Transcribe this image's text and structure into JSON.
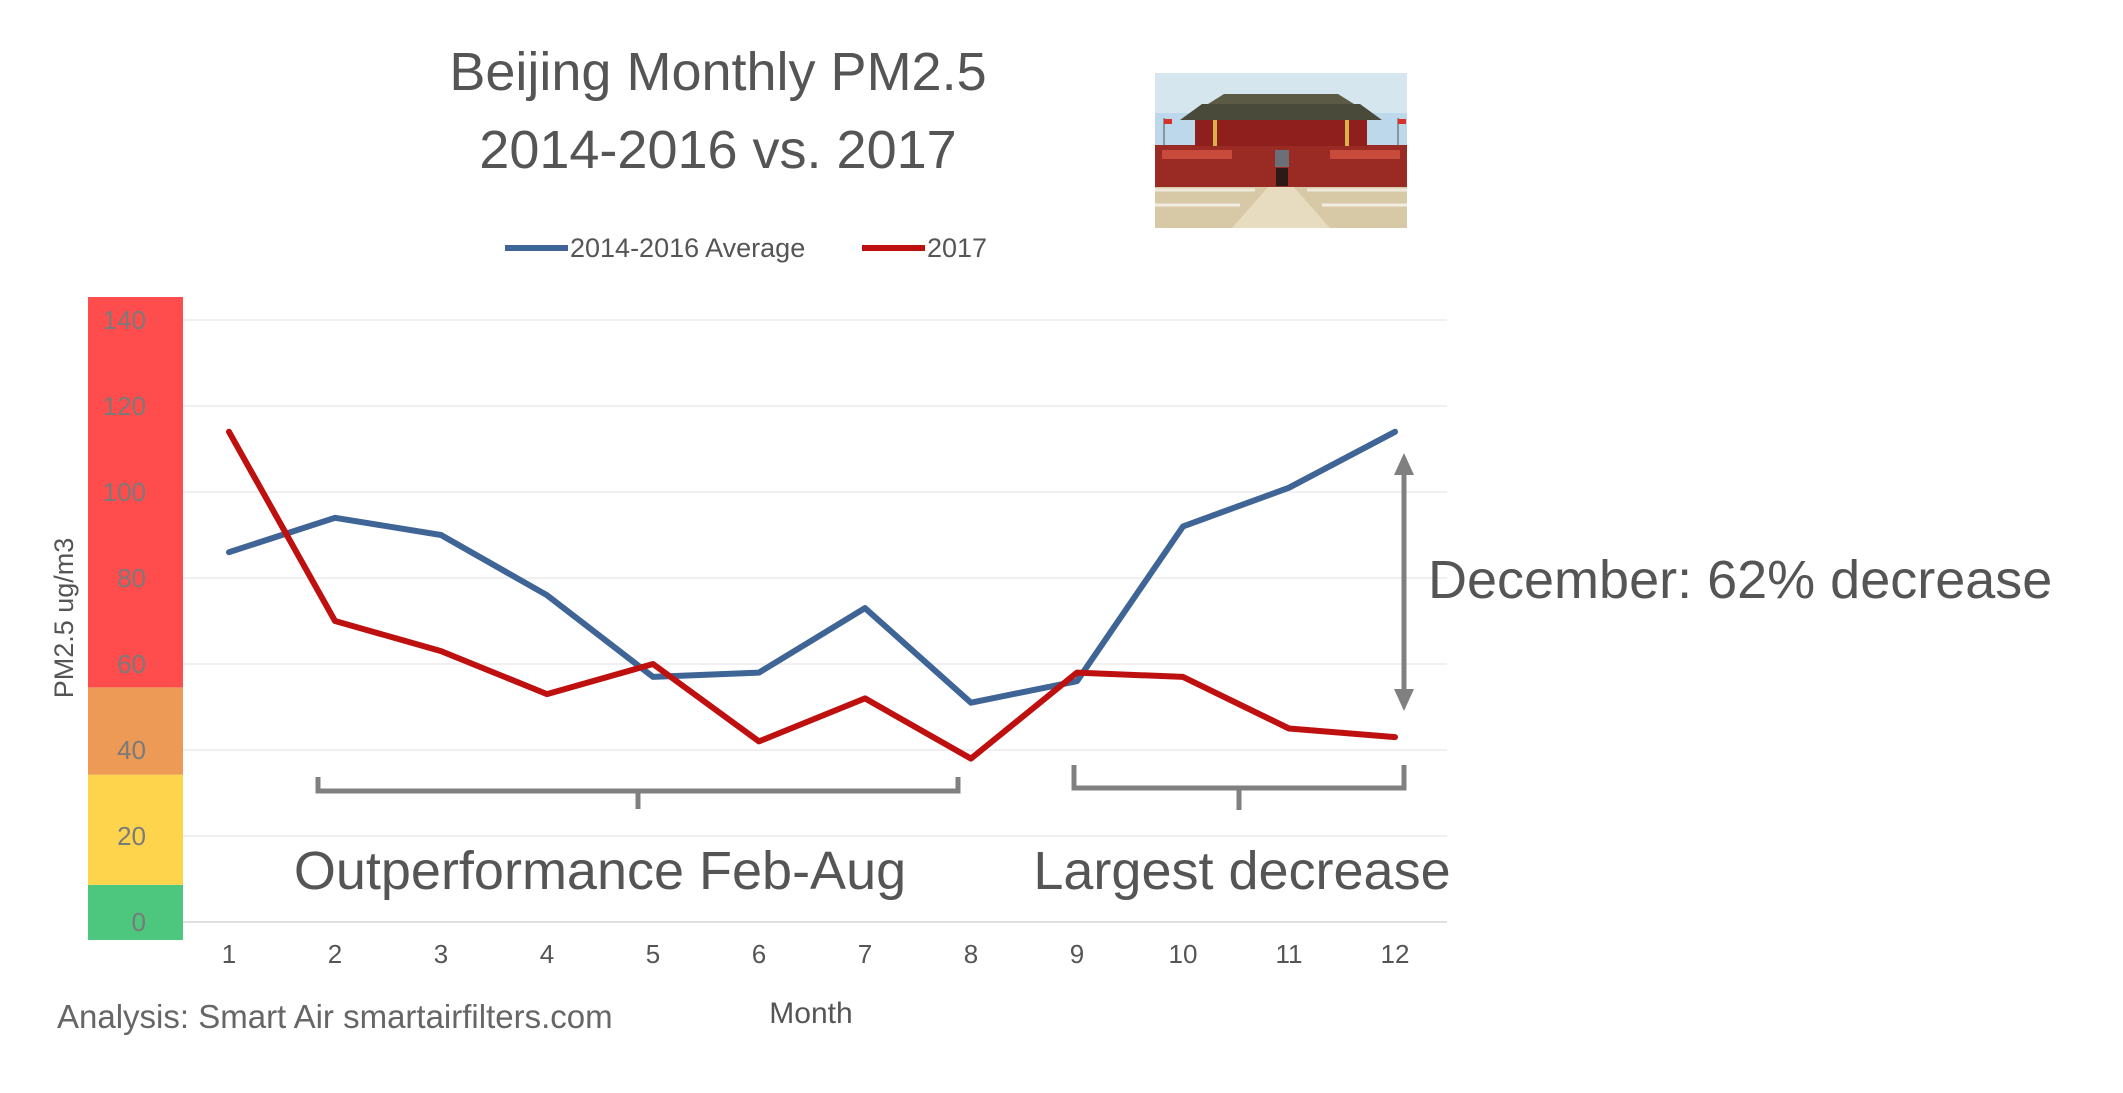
{
  "chart_data": {
    "type": "line",
    "title": "Beijing Monthly PM2.5",
    "subtitle": "2014-2016 vs. 2017",
    "xlabel": "Month",
    "ylabel": "PM2.5 ug/m3",
    "x": [
      1,
      2,
      3,
      4,
      5,
      6,
      7,
      8,
      9,
      10,
      11,
      12
    ],
    "ylim": [
      0,
      140
    ],
    "yticks": [
      0,
      20,
      40,
      60,
      80,
      100,
      120,
      140
    ],
    "grid": true,
    "legend_position": "top",
    "series": [
      {
        "name": "2014-2016 Average",
        "color": "#3f6496",
        "values": [
          86,
          94,
          90,
          76,
          57,
          58,
          73,
          51,
          56,
          92,
          101,
          114
        ]
      },
      {
        "name": "2017",
        "color": "#bf1010",
        "values": [
          114,
          70,
          63,
          53,
          60,
          42,
          52,
          38,
          58,
          57,
          45,
          43
        ]
      }
    ],
    "aqi_bands": [
      {
        "from": 0,
        "to": 12,
        "color": "#4dc77e"
      },
      {
        "from": 12,
        "to": 36,
        "color": "#ffd44d"
      },
      {
        "from": 36,
        "to": 55,
        "color": "#ec9a55"
      },
      {
        "from": 55,
        "to": 140,
        "color": "#ff4d4d"
      }
    ],
    "annotations": {
      "december": "December: 62% decrease",
      "feb_aug": "Outperformance Feb-Aug",
      "largest": "Largest decrease"
    },
    "source": "Analysis: Smart Air smartairfilters.com"
  },
  "image": {
    "icon": "tiananmen-gate-photo"
  }
}
